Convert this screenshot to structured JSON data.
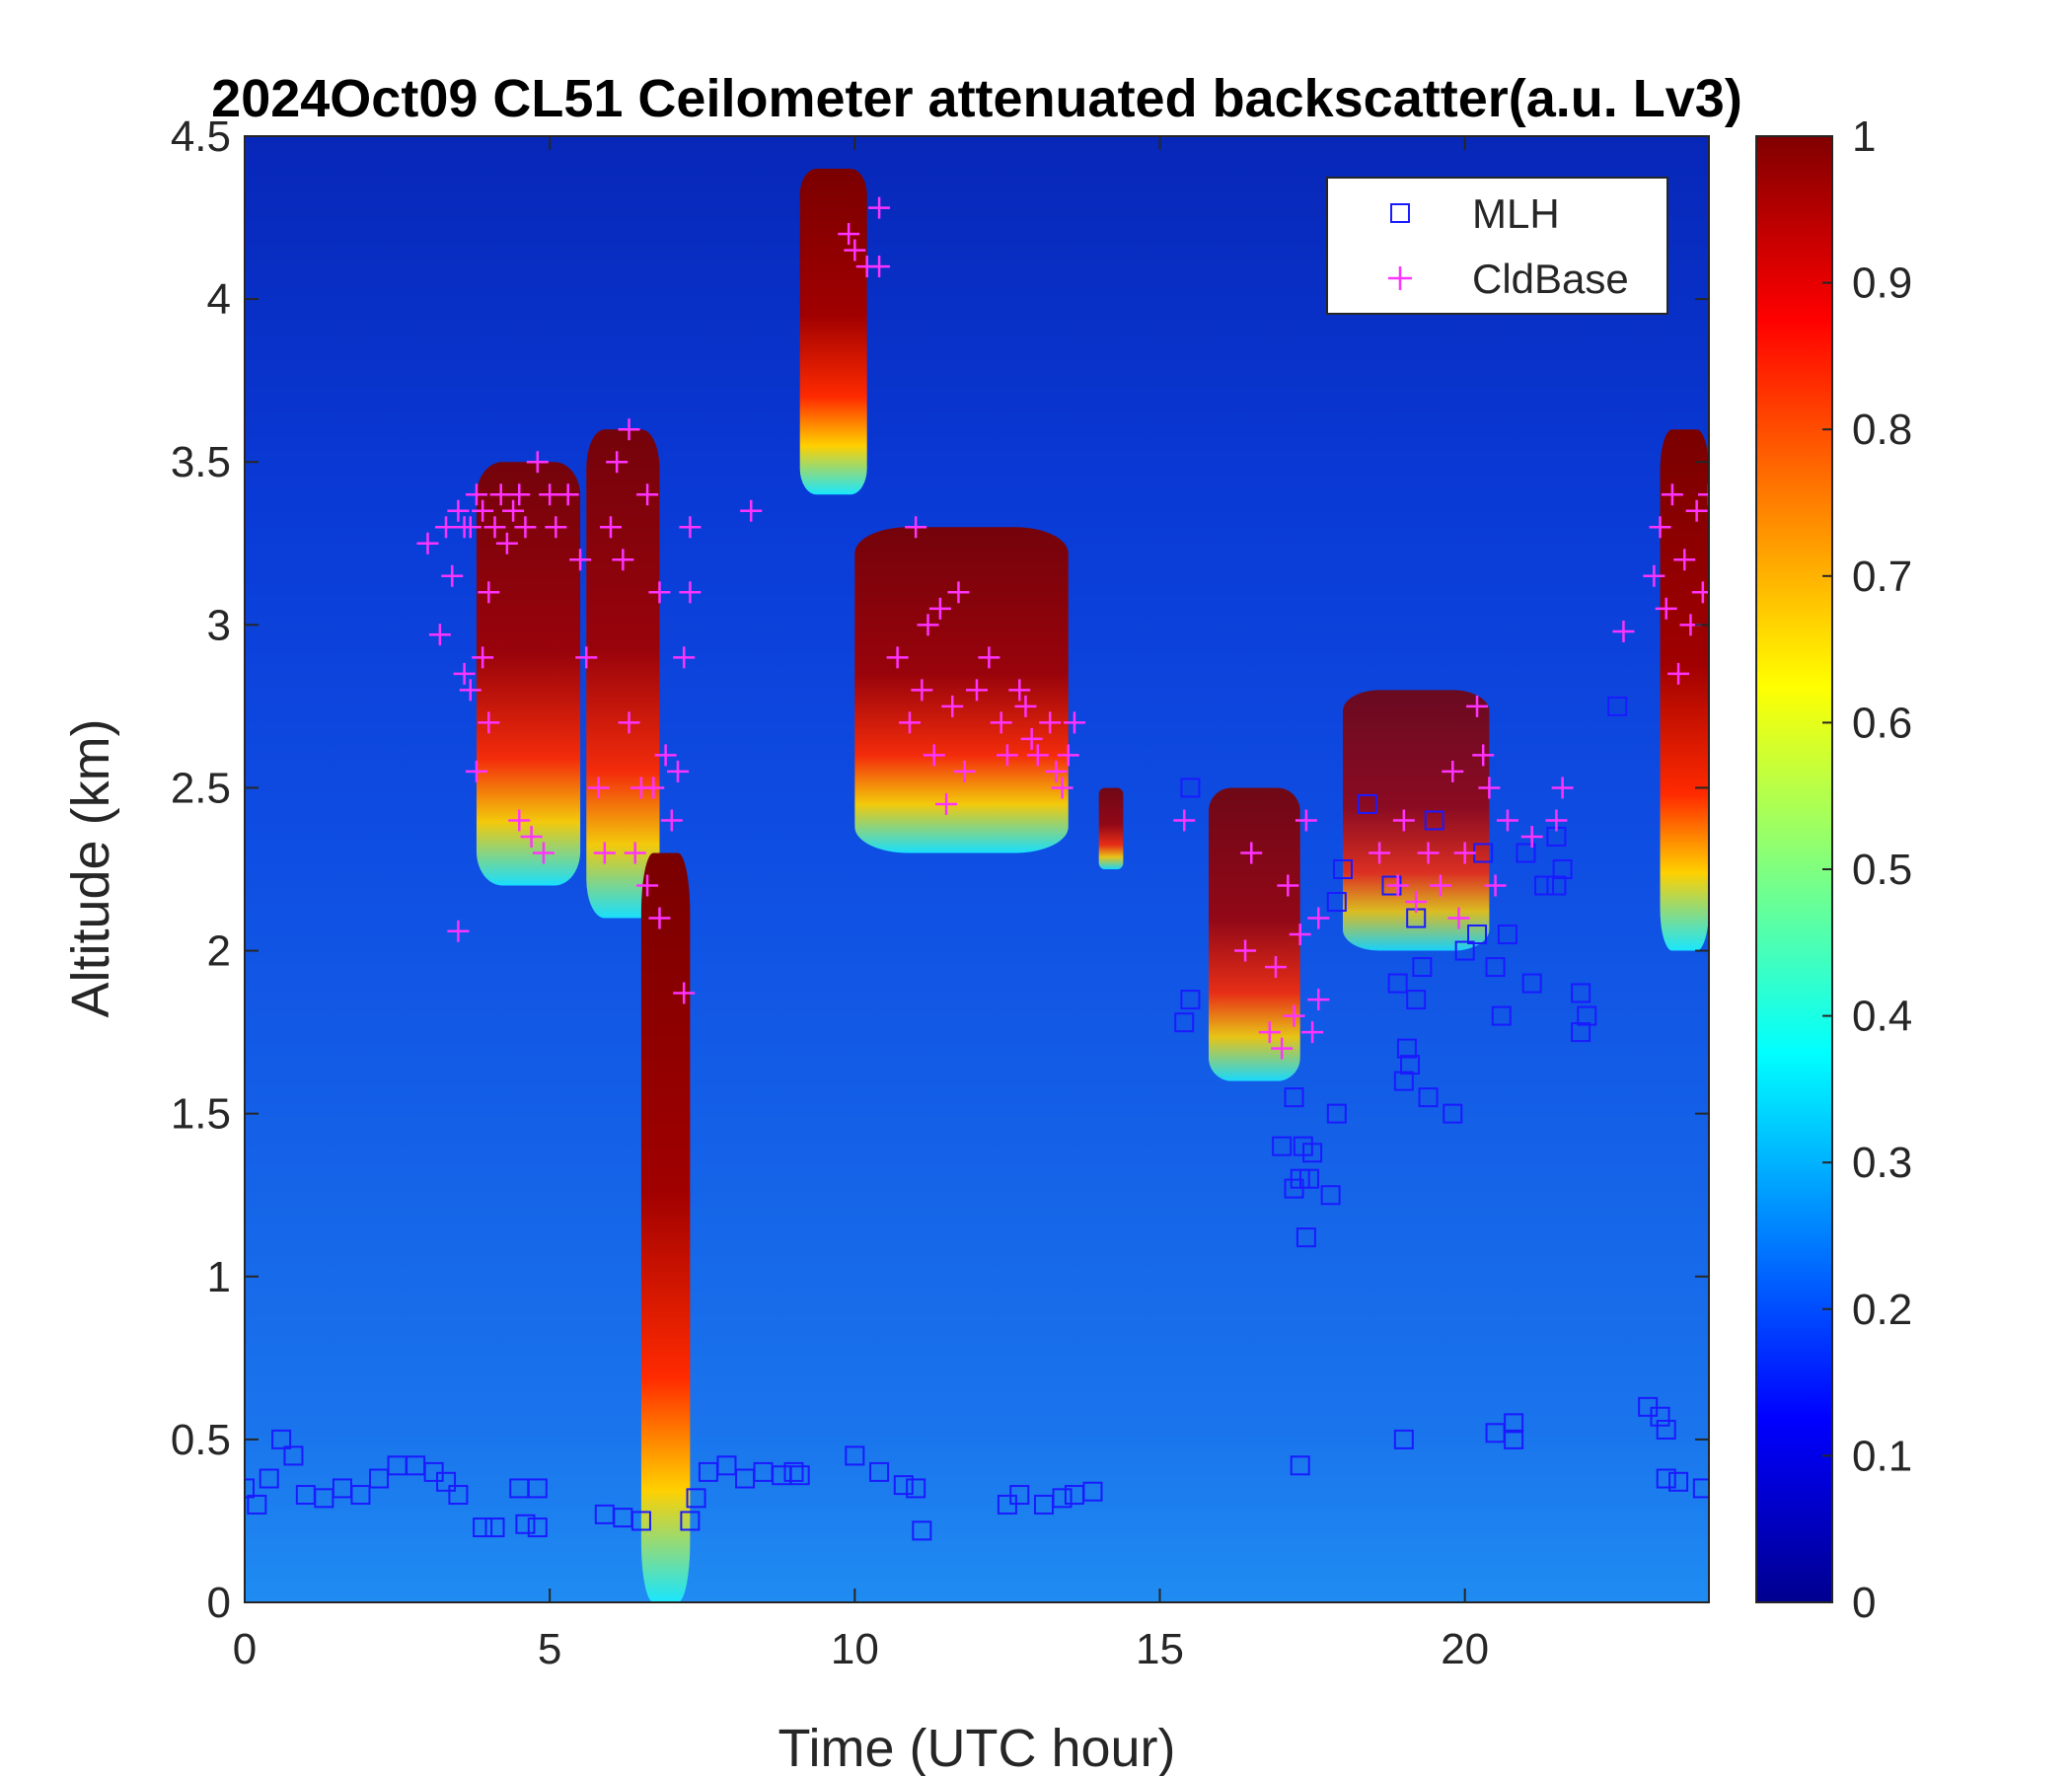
{
  "chart_data": {
    "type": "heatmap",
    "title": "2024Oct09 CL51 Ceilometer attenuated backscatter(a.u. Lv3)",
    "xlabel": "Time (UTC hour)",
    "ylabel": "Altitude (km)",
    "xlim": [
      0,
      24
    ],
    "ylim": [
      0,
      4.5
    ],
    "x_ticks": [
      "0",
      "5",
      "10",
      "15",
      "20"
    ],
    "x_tick_values": [
      0,
      5,
      10,
      15,
      20
    ],
    "y_ticks": [
      "0",
      "0.5",
      "1",
      "1.5",
      "2",
      "2.5",
      "3",
      "3.5",
      "4",
      "4.5"
    ],
    "y_tick_values": [
      0,
      0.5,
      1,
      1.5,
      2,
      2.5,
      3,
      3.5,
      4,
      4.5
    ],
    "colorbar": {
      "colormap": "jet",
      "range": [
        0,
        1
      ],
      "ticks": [
        "0",
        "0.1",
        "0.2",
        "0.3",
        "0.4",
        "0.5",
        "0.6",
        "0.7",
        "0.8",
        "0.9",
        "1"
      ],
      "tick_values": [
        0,
        0.1,
        0.2,
        0.3,
        0.4,
        0.5,
        0.6,
        0.7,
        0.8,
        0.9,
        1
      ]
    },
    "legend": {
      "position": "top-right"
    },
    "background_color": "#0d4fe6",
    "series": [
      {
        "name": "MLH",
        "marker": "square",
        "color": "#1a1aff",
        "points": [
          [
            0,
            0.35
          ],
          [
            0.2,
            0.3
          ],
          [
            0.4,
            0.38
          ],
          [
            0.6,
            0.5
          ],
          [
            0.8,
            0.45
          ],
          [
            1.0,
            0.33
          ],
          [
            1.3,
            0.32
          ],
          [
            1.6,
            0.35
          ],
          [
            1.9,
            0.33
          ],
          [
            2.2,
            0.38
          ],
          [
            2.5,
            0.42
          ],
          [
            2.8,
            0.42
          ],
          [
            3.1,
            0.4
          ],
          [
            3.3,
            0.37
          ],
          [
            3.5,
            0.33
          ],
          [
            3.9,
            0.23
          ],
          [
            4.1,
            0.23
          ],
          [
            4.5,
            0.35
          ],
          [
            4.6,
            0.24
          ],
          [
            4.8,
            0.23
          ],
          [
            4.8,
            0.35
          ],
          [
            5.9,
            0.27
          ],
          [
            6.2,
            0.26
          ],
          [
            6.5,
            0.25
          ],
          [
            7.3,
            0.25
          ],
          [
            7.4,
            0.32
          ],
          [
            7.6,
            0.4
          ],
          [
            7.9,
            0.42
          ],
          [
            8.2,
            0.38
          ],
          [
            8.5,
            0.4
          ],
          [
            8.8,
            0.39
          ],
          [
            9.0,
            0.4
          ],
          [
            9.1,
            0.39
          ],
          [
            10.0,
            0.45
          ],
          [
            10.4,
            0.4
          ],
          [
            10.8,
            0.36
          ],
          [
            11.0,
            0.35
          ],
          [
            11.1,
            0.22
          ],
          [
            12.5,
            0.3
          ],
          [
            12.7,
            0.33
          ],
          [
            13.1,
            0.3
          ],
          [
            13.4,
            0.32
          ],
          [
            13.6,
            0.33
          ],
          [
            13.9,
            0.34
          ],
          [
            15.4,
            1.78
          ],
          [
            15.5,
            1.85
          ],
          [
            15.5,
            2.5
          ],
          [
            17.0,
            1.4
          ],
          [
            17.2,
            1.27
          ],
          [
            17.2,
            1.55
          ],
          [
            17.3,
            0.42
          ],
          [
            17.3,
            1.3
          ],
          [
            17.35,
            1.4
          ],
          [
            17.4,
            1.12
          ],
          [
            17.45,
            1.3
          ],
          [
            17.5,
            1.38
          ],
          [
            17.8,
            1.25
          ],
          [
            17.9,
            2.15
          ],
          [
            17.9,
            1.5
          ],
          [
            18.0,
            2.25
          ],
          [
            18.4,
            2.45
          ],
          [
            18.8,
            2.2
          ],
          [
            18.9,
            1.9
          ],
          [
            19.0,
            1.6
          ],
          [
            19.0,
            0.5
          ],
          [
            19.05,
            1.7
          ],
          [
            19.1,
            1.65
          ],
          [
            19.2,
            1.85
          ],
          [
            19.2,
            2.1
          ],
          [
            19.3,
            1.95
          ],
          [
            19.4,
            1.55
          ],
          [
            19.5,
            2.4
          ],
          [
            19.8,
            1.5
          ],
          [
            20.0,
            2.0
          ],
          [
            20.2,
            2.05
          ],
          [
            20.3,
            2.3
          ],
          [
            20.5,
            0.52
          ],
          [
            20.5,
            1.95
          ],
          [
            20.6,
            1.8
          ],
          [
            20.7,
            2.05
          ],
          [
            20.8,
            0.5
          ],
          [
            20.8,
            0.55
          ],
          [
            21.0,
            2.3
          ],
          [
            21.1,
            1.9
          ],
          [
            21.3,
            2.2
          ],
          [
            21.5,
            2.2
          ],
          [
            21.5,
            2.35
          ],
          [
            21.6,
            2.25
          ],
          [
            21.9,
            1.75
          ],
          [
            21.9,
            1.87
          ],
          [
            22.0,
            1.8
          ],
          [
            22.5,
            2.75
          ],
          [
            23.0,
            0.6
          ],
          [
            23.2,
            0.57
          ],
          [
            23.3,
            0.53
          ],
          [
            23.3,
            0.38
          ],
          [
            23.5,
            0.37
          ],
          [
            23.9,
            0.35
          ]
        ]
      },
      {
        "name": "CldBase",
        "marker": "plus",
        "color": "#ff33ff",
        "points": [
          [
            3.0,
            3.25
          ],
          [
            3.2,
            2.97
          ],
          [
            3.3,
            3.3
          ],
          [
            3.4,
            3.15
          ],
          [
            3.5,
            3.35
          ],
          [
            3.5,
            2.06
          ],
          [
            3.6,
            3.3
          ],
          [
            3.6,
            2.85
          ],
          [
            3.7,
            3.3
          ],
          [
            3.7,
            2.8
          ],
          [
            3.8,
            2.55
          ],
          [
            3.8,
            3.4
          ],
          [
            3.9,
            2.9
          ],
          [
            3.9,
            3.35
          ],
          [
            4.0,
            3.1
          ],
          [
            4.0,
            2.7
          ],
          [
            4.1,
            3.3
          ],
          [
            4.2,
            3.4
          ],
          [
            4.3,
            3.25
          ],
          [
            4.4,
            3.35
          ],
          [
            4.5,
            3.4
          ],
          [
            4.5,
            2.4
          ],
          [
            4.6,
            3.3
          ],
          [
            4.7,
            2.35
          ],
          [
            4.8,
            3.5
          ],
          [
            4.9,
            2.3
          ],
          [
            5.0,
            3.4
          ],
          [
            5.1,
            3.3
          ],
          [
            5.3,
            3.4
          ],
          [
            5.5,
            3.2
          ],
          [
            5.6,
            2.9
          ],
          [
            5.8,
            2.5
          ],
          [
            5.9,
            2.3
          ],
          [
            6.0,
            3.3
          ],
          [
            6.1,
            3.5
          ],
          [
            6.2,
            3.2
          ],
          [
            6.3,
            3.6
          ],
          [
            6.3,
            2.7
          ],
          [
            6.4,
            2.3
          ],
          [
            6.5,
            2.5
          ],
          [
            6.6,
            3.4
          ],
          [
            6.6,
            2.2
          ],
          [
            6.7,
            2.5
          ],
          [
            6.8,
            3.1
          ],
          [
            6.8,
            2.1
          ],
          [
            6.9,
            2.6
          ],
          [
            7.0,
            2.4
          ],
          [
            7.1,
            2.55
          ],
          [
            7.2,
            2.9
          ],
          [
            7.2,
            1.87
          ],
          [
            7.3,
            3.1
          ],
          [
            7.3,
            3.3
          ],
          [
            8.3,
            3.35
          ],
          [
            9.9,
            4.2
          ],
          [
            10.0,
            4.15
          ],
          [
            10.2,
            4.1
          ],
          [
            10.4,
            4.1
          ],
          [
            10.4,
            4.28
          ],
          [
            10.7,
            2.9
          ],
          [
            10.9,
            2.7
          ],
          [
            11.0,
            3.3
          ],
          [
            11.1,
            2.8
          ],
          [
            11.2,
            3.0
          ],
          [
            11.3,
            2.6
          ],
          [
            11.4,
            3.05
          ],
          [
            11.5,
            2.45
          ],
          [
            11.6,
            2.75
          ],
          [
            11.7,
            3.1
          ],
          [
            11.8,
            2.55
          ],
          [
            12.0,
            2.8
          ],
          [
            12.2,
            2.9
          ],
          [
            12.4,
            2.7
          ],
          [
            12.5,
            2.6
          ],
          [
            12.7,
            2.8
          ],
          [
            12.8,
            2.75
          ],
          [
            12.9,
            2.65
          ],
          [
            13.0,
            2.6
          ],
          [
            13.2,
            2.7
          ],
          [
            13.3,
            2.55
          ],
          [
            13.4,
            2.5
          ],
          [
            13.5,
            2.6
          ],
          [
            13.6,
            2.7
          ],
          [
            15.4,
            2.4
          ],
          [
            16.4,
            2.0
          ],
          [
            16.5,
            2.3
          ],
          [
            16.8,
            1.75
          ],
          [
            16.9,
            1.95
          ],
          [
            17.0,
            1.7
          ],
          [
            17.1,
            2.2
          ],
          [
            17.2,
            1.8
          ],
          [
            17.3,
            2.05
          ],
          [
            17.4,
            2.4
          ],
          [
            17.5,
            1.75
          ],
          [
            17.6,
            1.85
          ],
          [
            17.6,
            2.1
          ],
          [
            18.6,
            2.3
          ],
          [
            18.9,
            2.2
          ],
          [
            19.0,
            2.4
          ],
          [
            19.2,
            2.15
          ],
          [
            19.4,
            2.3
          ],
          [
            19.6,
            2.2
          ],
          [
            19.8,
            2.55
          ],
          [
            19.9,
            2.1
          ],
          [
            20.0,
            2.3
          ],
          [
            20.2,
            2.75
          ],
          [
            20.3,
            2.6
          ],
          [
            20.4,
            2.5
          ],
          [
            20.5,
            2.2
          ],
          [
            20.7,
            2.4
          ],
          [
            21.1,
            2.35
          ],
          [
            21.5,
            2.4
          ],
          [
            21.6,
            2.5
          ],
          [
            22.6,
            2.98
          ],
          [
            23.1,
            3.15
          ],
          [
            23.2,
            3.3
          ],
          [
            23.3,
            3.05
          ],
          [
            23.4,
            3.4
          ],
          [
            23.5,
            2.85
          ],
          [
            23.6,
            3.2
          ],
          [
            23.7,
            3.0
          ],
          [
            23.8,
            3.35
          ],
          [
            23.9,
            3.1
          ],
          [
            24.0,
            3.4
          ]
        ]
      }
    ],
    "features": [
      {
        "x": [
          3.8,
          5.5
        ],
        "y": [
          2.2,
          3.5
        ],
        "intensity": 0.95
      },
      {
        "x": [
          5.6,
          6.8
        ],
        "y": [
          2.1,
          3.6
        ],
        "intensity": 0.95
      },
      {
        "x": [
          6.5,
          7.3
        ],
        "y": [
          0.0,
          2.3
        ],
        "intensity": 1.0
      },
      {
        "x": [
          9.1,
          10.2
        ],
        "y": [
          3.4,
          4.4
        ],
        "intensity": 1.0
      },
      {
        "x": [
          10.0,
          13.5
        ],
        "y": [
          2.3,
          3.3
        ],
        "intensity": 0.95
      },
      {
        "x": [
          14.0,
          14.4
        ],
        "y": [
          2.25,
          2.5
        ],
        "intensity": 0.9
      },
      {
        "x": [
          15.8,
          17.3
        ],
        "y": [
          1.6,
          2.5
        ],
        "intensity": 0.9
      },
      {
        "x": [
          18.0,
          20.4
        ],
        "y": [
          2.0,
          2.8
        ],
        "intensity": 0.85
      },
      {
        "x": [
          23.2,
          24.0
        ],
        "y": [
          2.0,
          3.6
        ],
        "intensity": 1.0
      }
    ]
  }
}
